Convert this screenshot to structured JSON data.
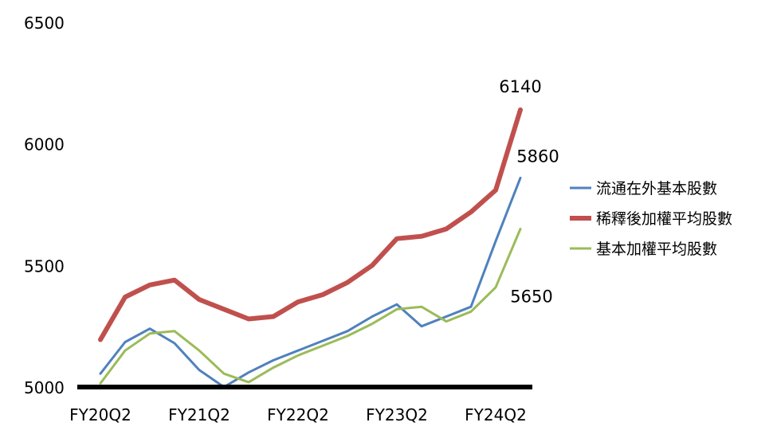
{
  "chart_data": {
    "type": "line",
    "title": "",
    "xlabel": "",
    "ylabel": "",
    "ylim": [
      5000,
      6500
    ],
    "yticks": [
      5000,
      5500,
      6000,
      6500
    ],
    "x": [
      "FY20Q2",
      "FY20Q3",
      "FY20Q4",
      "FY21Q1",
      "FY21Q2",
      "FY21Q3",
      "FY21Q4",
      "FY22Q1",
      "FY22Q2",
      "FY22Q3",
      "FY22Q4",
      "FY23Q1",
      "FY23Q2",
      "FY23Q3",
      "FY23Q4",
      "FY24Q1",
      "FY24Q2",
      "FY24Q3",
      "FY24Q4"
    ],
    "xtick_labels": [
      {
        "index": 0,
        "label": "FY20Q2"
      },
      {
        "index": 4,
        "label": "FY21Q2"
      },
      {
        "index": 8,
        "label": "FY22Q2"
      },
      {
        "index": 12,
        "label": "FY23Q2"
      },
      {
        "index": 16,
        "label": "FY24Q2"
      }
    ],
    "grid": false,
    "legend_position": "right",
    "series": [
      {
        "name": "流通在外基本股數",
        "color": "#4F81BD",
        "values": [
          5055,
          5185,
          5240,
          5180,
          5070,
          5000,
          5060,
          5110,
          5150,
          5190,
          5230,
          5290,
          5340,
          5250,
          5290,
          5330,
          5600,
          5860,
          null
        ]
      },
      {
        "name": "稀釋後加權平均股數",
        "color": "#C0504D",
        "values": [
          5195,
          5370,
          5420,
          5440,
          5360,
          5320,
          5280,
          5290,
          5350,
          5380,
          5430,
          5500,
          5610,
          5620,
          5650,
          5720,
          5810,
          6140,
          null
        ]
      },
      {
        "name": "基本加權平均股數",
        "color": "#9BBB59",
        "values": [
          5015,
          5150,
          5220,
          5230,
          5150,
          5055,
          5020,
          5080,
          5130,
          5170,
          5210,
          5260,
          5320,
          5330,
          5270,
          5310,
          5410,
          5650,
          null
        ]
      }
    ],
    "annotations": [
      {
        "text": "6140",
        "series": 1,
        "index": 17
      },
      {
        "text": "5860",
        "series": 0,
        "index": 17
      },
      {
        "text": "5650",
        "series": 2,
        "index": 17
      }
    ]
  }
}
